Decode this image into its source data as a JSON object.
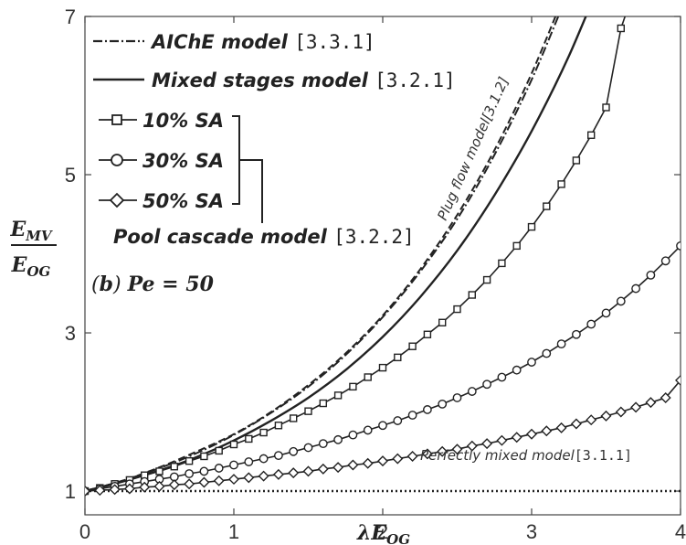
{
  "chart_data": {
    "type": "line",
    "xlabel": "λE_OG",
    "ylabel_num": "E_MV",
    "ylabel_den": "E_OG",
    "xlim": [
      0,
      4
    ],
    "ylim": [
      0.7,
      7
    ],
    "xticks": [
      0,
      1,
      2,
      3,
      4
    ],
    "yticks": [
      1,
      3,
      5,
      7
    ],
    "grid": false,
    "panel_label": "(b) Pe = 50",
    "series": [
      {
        "name": "AIChE model [3.3.1]",
        "style": "dashdot",
        "x": [
          0,
          0.25,
          0.5,
          0.75,
          1,
          1.25,
          1.5,
          1.75,
          2,
          2.25,
          2.5,
          2.75,
          3,
          3.25
        ],
        "y": [
          1,
          1.13,
          1.29,
          1.48,
          1.71,
          1.99,
          2.32,
          2.72,
          3.2,
          3.77,
          4.44,
          5.25,
          6.2,
          7.33
        ]
      },
      {
        "name": "Plug flow model [3.1.2]",
        "style": "dashed",
        "x": [
          0,
          0.25,
          0.5,
          0.75,
          1,
          1.25,
          1.5,
          1.75,
          2,
          2.25,
          2.5,
          2.75,
          3,
          3.25
        ],
        "y": [
          1,
          1.13,
          1.3,
          1.5,
          1.72,
          2.0,
          2.34,
          2.74,
          3.22,
          3.8,
          4.49,
          5.31,
          6.28,
          7.42
        ]
      },
      {
        "name": "Mixed stages model [3.2.1]",
        "style": "solid",
        "x": [
          0,
          0.25,
          0.5,
          0.75,
          1,
          1.25,
          1.5,
          1.75,
          2,
          2.25,
          2.5,
          2.75,
          3,
          3.25,
          3.5
        ],
        "y": [
          1,
          1.12,
          1.26,
          1.43,
          1.64,
          1.89,
          2.18,
          2.53,
          2.95,
          3.45,
          4.04,
          4.74,
          5.55,
          6.5,
          7.62
        ]
      },
      {
        "name": "10% SA",
        "marker": "square",
        "x": [
          0,
          0.1,
          0.2,
          0.3,
          0.4,
          0.5,
          0.6,
          0.7,
          0.8,
          0.9,
          1.0,
          1.1,
          1.2,
          1.3,
          1.4,
          1.5,
          1.6,
          1.7,
          1.8,
          1.9,
          2.0,
          2.1,
          2.2,
          2.3,
          2.4,
          2.5,
          2.6,
          2.7,
          2.8,
          2.9,
          3.0,
          3.1,
          3.2,
          3.3,
          3.4,
          3.5,
          3.6,
          3.7
        ],
        "y": [
          1,
          1.04,
          1.09,
          1.14,
          1.2,
          1.25,
          1.31,
          1.38,
          1.44,
          1.51,
          1.59,
          1.66,
          1.74,
          1.83,
          1.92,
          2.01,
          2.11,
          2.21,
          2.32,
          2.44,
          2.56,
          2.69,
          2.83,
          2.98,
          3.13,
          3.3,
          3.48,
          3.67,
          3.88,
          4.1,
          4.34,
          4.6,
          4.88,
          5.18,
          5.5,
          5.85,
          6.85,
          7.4
        ]
      },
      {
        "name": "30% SA",
        "marker": "circle",
        "x": [
          0,
          0.1,
          0.2,
          0.3,
          0.4,
          0.5,
          0.6,
          0.7,
          0.8,
          0.9,
          1.0,
          1.1,
          1.2,
          1.3,
          1.4,
          1.5,
          1.6,
          1.7,
          1.8,
          1.9,
          2.0,
          2.1,
          2.2,
          2.3,
          2.4,
          2.5,
          2.6,
          2.7,
          2.8,
          2.9,
          3.0,
          3.1,
          3.2,
          3.3,
          3.4,
          3.5,
          3.6,
          3.7,
          3.8,
          3.9,
          4.0
        ],
        "y": [
          1,
          1.03,
          1.06,
          1.09,
          1.12,
          1.15,
          1.18,
          1.22,
          1.25,
          1.29,
          1.33,
          1.37,
          1.41,
          1.45,
          1.5,
          1.55,
          1.6,
          1.65,
          1.71,
          1.77,
          1.83,
          1.89,
          1.96,
          2.03,
          2.1,
          2.18,
          2.26,
          2.35,
          2.44,
          2.53,
          2.63,
          2.74,
          2.86,
          2.98,
          3.11,
          3.25,
          3.4,
          3.56,
          3.73,
          3.91,
          4.1
        ]
      },
      {
        "name": "50% SA",
        "marker": "diamond",
        "x": [
          0,
          0.1,
          0.2,
          0.3,
          0.4,
          0.5,
          0.6,
          0.7,
          0.8,
          0.9,
          1.0,
          1.1,
          1.2,
          1.3,
          1.4,
          1.5,
          1.6,
          1.7,
          1.8,
          1.9,
          2.0,
          2.1,
          2.2,
          2.3,
          2.4,
          2.5,
          2.6,
          2.7,
          2.8,
          2.9,
          3.0,
          3.1,
          3.2,
          3.3,
          3.4,
          3.5,
          3.6,
          3.7,
          3.8,
          3.9,
          4.0
        ],
        "y": [
          1,
          1.01,
          1.02,
          1.03,
          1.05,
          1.06,
          1.08,
          1.09,
          1.11,
          1.13,
          1.15,
          1.17,
          1.19,
          1.21,
          1.23,
          1.25,
          1.28,
          1.3,
          1.33,
          1.35,
          1.38,
          1.41,
          1.44,
          1.47,
          1.5,
          1.53,
          1.57,
          1.6,
          1.64,
          1.68,
          1.72,
          1.76,
          1.8,
          1.85,
          1.9,
          1.95,
          2.0,
          2.06,
          2.12,
          2.18,
          2.4
        ]
      },
      {
        "name": "Perfectly mixed model [3.1.1]",
        "style": "dotted",
        "x": [
          0,
          4
        ],
        "y": [
          1,
          1
        ]
      }
    ],
    "legend": {
      "aiche": "AIChE model ",
      "aiche_ref": "[3.3.1]",
      "mixed": "Mixed stages model ",
      "mixed_ref": "[3.2.1]",
      "sa10": "10% SA",
      "sa30": "30% SA",
      "sa50": "50% SA",
      "pool": "Pool cascade model ",
      "pool_ref": "[3.2.2]"
    },
    "annotations": {
      "plug": "Plug flow model[3.1.2]",
      "perfect": "Perfectly mixed model",
      "perfect_ref": "[3.1.1]"
    }
  }
}
